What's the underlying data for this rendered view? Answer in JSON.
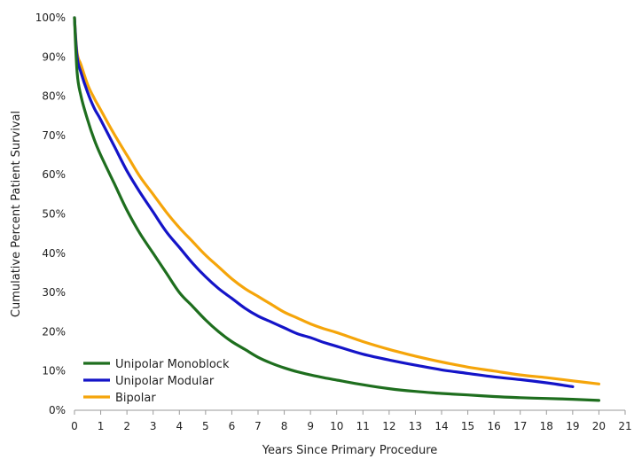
{
  "chart_data": {
    "type": "line",
    "title": "",
    "xlabel": "Years Since Primary Procedure",
    "ylabel": "Cumulative Percent Patient Survival",
    "xlim": [
      0,
      21
    ],
    "ylim": [
      0,
      100
    ],
    "x_ticks": [
      0,
      1,
      2,
      3,
      4,
      5,
      6,
      7,
      8,
      9,
      10,
      11,
      12,
      13,
      14,
      15,
      16,
      17,
      18,
      19,
      20,
      21
    ],
    "y_ticks": [
      0,
      10,
      20,
      30,
      40,
      50,
      60,
      70,
      80,
      90,
      100
    ],
    "y_tick_labels": [
      "0%",
      "10%",
      "20%",
      "30%",
      "40%",
      "50%",
      "60%",
      "70%",
      "80%",
      "90%",
      "100%"
    ],
    "grid": false,
    "legend_position": "bottom-left",
    "series": [
      {
        "name": "Unipolar Monoblock",
        "color": "#1e6e1e",
        "x": [
          0,
          0.1,
          0.25,
          0.5,
          0.75,
          1,
          1.5,
          2,
          2.5,
          3,
          3.5,
          4,
          4.5,
          5,
          5.5,
          6,
          6.5,
          7,
          7.5,
          8,
          8.5,
          9,
          9.5,
          10,
          11,
          12,
          13,
          14,
          15,
          16,
          17,
          18,
          19,
          20
        ],
        "y": [
          100,
          86,
          80,
          74,
          69,
          65,
          58,
          51,
          45,
          40,
          35,
          30,
          26.5,
          23,
          20,
          17.5,
          15.5,
          13.5,
          12,
          10.8,
          9.8,
          9,
          8.3,
          7.7,
          6.5,
          5.5,
          4.8,
          4.3,
          3.9,
          3.5,
          3.2,
          3,
          2.8,
          2.5
        ]
      },
      {
        "name": "Unipolar Modular",
        "color": "#1414c8",
        "x": [
          0,
          0.1,
          0.25,
          0.5,
          0.75,
          1,
          1.5,
          2,
          2.5,
          3,
          3.5,
          4,
          4.5,
          5,
          5.5,
          6,
          6.5,
          7,
          7.5,
          8,
          8.5,
          9,
          9.5,
          10,
          11,
          12,
          13,
          14,
          15,
          16,
          17,
          18,
          19
        ],
        "y": [
          100,
          90,
          86,
          81,
          77,
          74,
          67.5,
          61,
          55.5,
          50.5,
          45.5,
          41.5,
          37.5,
          34,
          31,
          28.5,
          26,
          24,
          22.5,
          21,
          19.5,
          18.5,
          17.3,
          16.3,
          14.3,
          12.8,
          11.5,
          10.3,
          9.4,
          8.5,
          7.8,
          7,
          6
        ]
      },
      {
        "name": "Bipolar",
        "color": "#f5a50a",
        "x": [
          0,
          0.1,
          0.25,
          0.5,
          0.75,
          1,
          1.5,
          2,
          2.5,
          3,
          3.5,
          4,
          4.5,
          5,
          5.5,
          6,
          6.5,
          7,
          7.5,
          8,
          8.5,
          9,
          9.5,
          10,
          11,
          12,
          13,
          14,
          15,
          16,
          17,
          18,
          19,
          20
        ],
        "y": [
          100,
          91,
          88,
          83,
          79.5,
          76.5,
          70.5,
          65,
          59.5,
          55,
          50.5,
          46.5,
          43,
          39.5,
          36.5,
          33.5,
          31,
          29,
          27,
          25,
          23.5,
          22,
          20.8,
          19.8,
          17.5,
          15.5,
          13.8,
          12.3,
          11,
          10,
          9,
          8.3,
          7.5,
          6.7
        ]
      }
    ]
  }
}
